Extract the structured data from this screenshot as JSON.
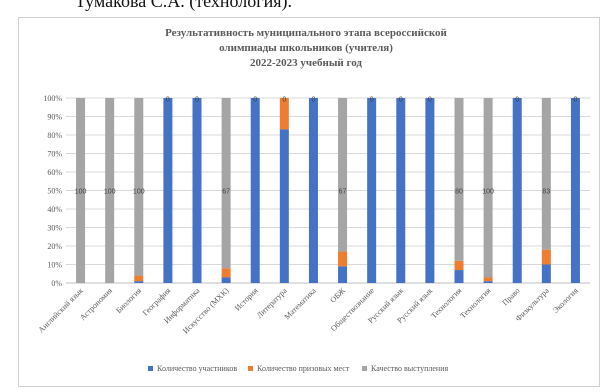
{
  "page": {
    "header_fragment": "Тумакова С.А. (технология)."
  },
  "chart_data": {
    "type": "bar",
    "stacked": "percent",
    "title_lines": [
      "Результативность муниципального этапа всероссийской",
      "олимпиады школьников (учителя)",
      "2022-2023 учебный год"
    ],
    "y_ticks": [
      "0%",
      "10%",
      "20%",
      "30%",
      "40%",
      "50%",
      "60%",
      "70%",
      "80%",
      "90%",
      "100%"
    ],
    "ylim": [
      0,
      100
    ],
    "grid": true,
    "legend_position": "bottom",
    "categories": [
      "Английский язык",
      "Астрономия",
      "Биология",
      "География",
      "Информатика",
      "Искусство (МХК)",
      "История",
      "Литература",
      "Математика",
      "ОБЖ",
      "Обществознание",
      "Русский язык",
      "Русский язык",
      "Технология",
      "Технология",
      "Право",
      "Физкультура",
      "Экология"
    ],
    "series": [
      {
        "name": "Количество участников",
        "color": "#4472c4",
        "values": [
          0,
          0,
          1,
          100,
          100,
          3,
          100,
          83,
          100,
          9,
          100,
          100,
          100,
          7,
          1,
          100,
          10,
          100
        ]
      },
      {
        "name": "Количество призовых мест",
        "color": "#ed7d31",
        "values": [
          0,
          0,
          3,
          0,
          0,
          5,
          0,
          17,
          0,
          8,
          0,
          0,
          0,
          5,
          2,
          0,
          8,
          0
        ]
      },
      {
        "name": "Качество выступления",
        "color": "#a5a5a5",
        "values": [
          100,
          100,
          96,
          0,
          0,
          92,
          0,
          0,
          0,
          83,
          0,
          0,
          0,
          88,
          97,
          0,
          82,
          0
        ]
      }
    ],
    "value_labels": [
      "100",
      "100",
      "100",
      "0",
      "0",
      "67",
      "0",
      "0",
      "0",
      "67",
      "0",
      "0",
      "0",
      "80",
      "100",
      "0",
      "83",
      "0"
    ]
  }
}
